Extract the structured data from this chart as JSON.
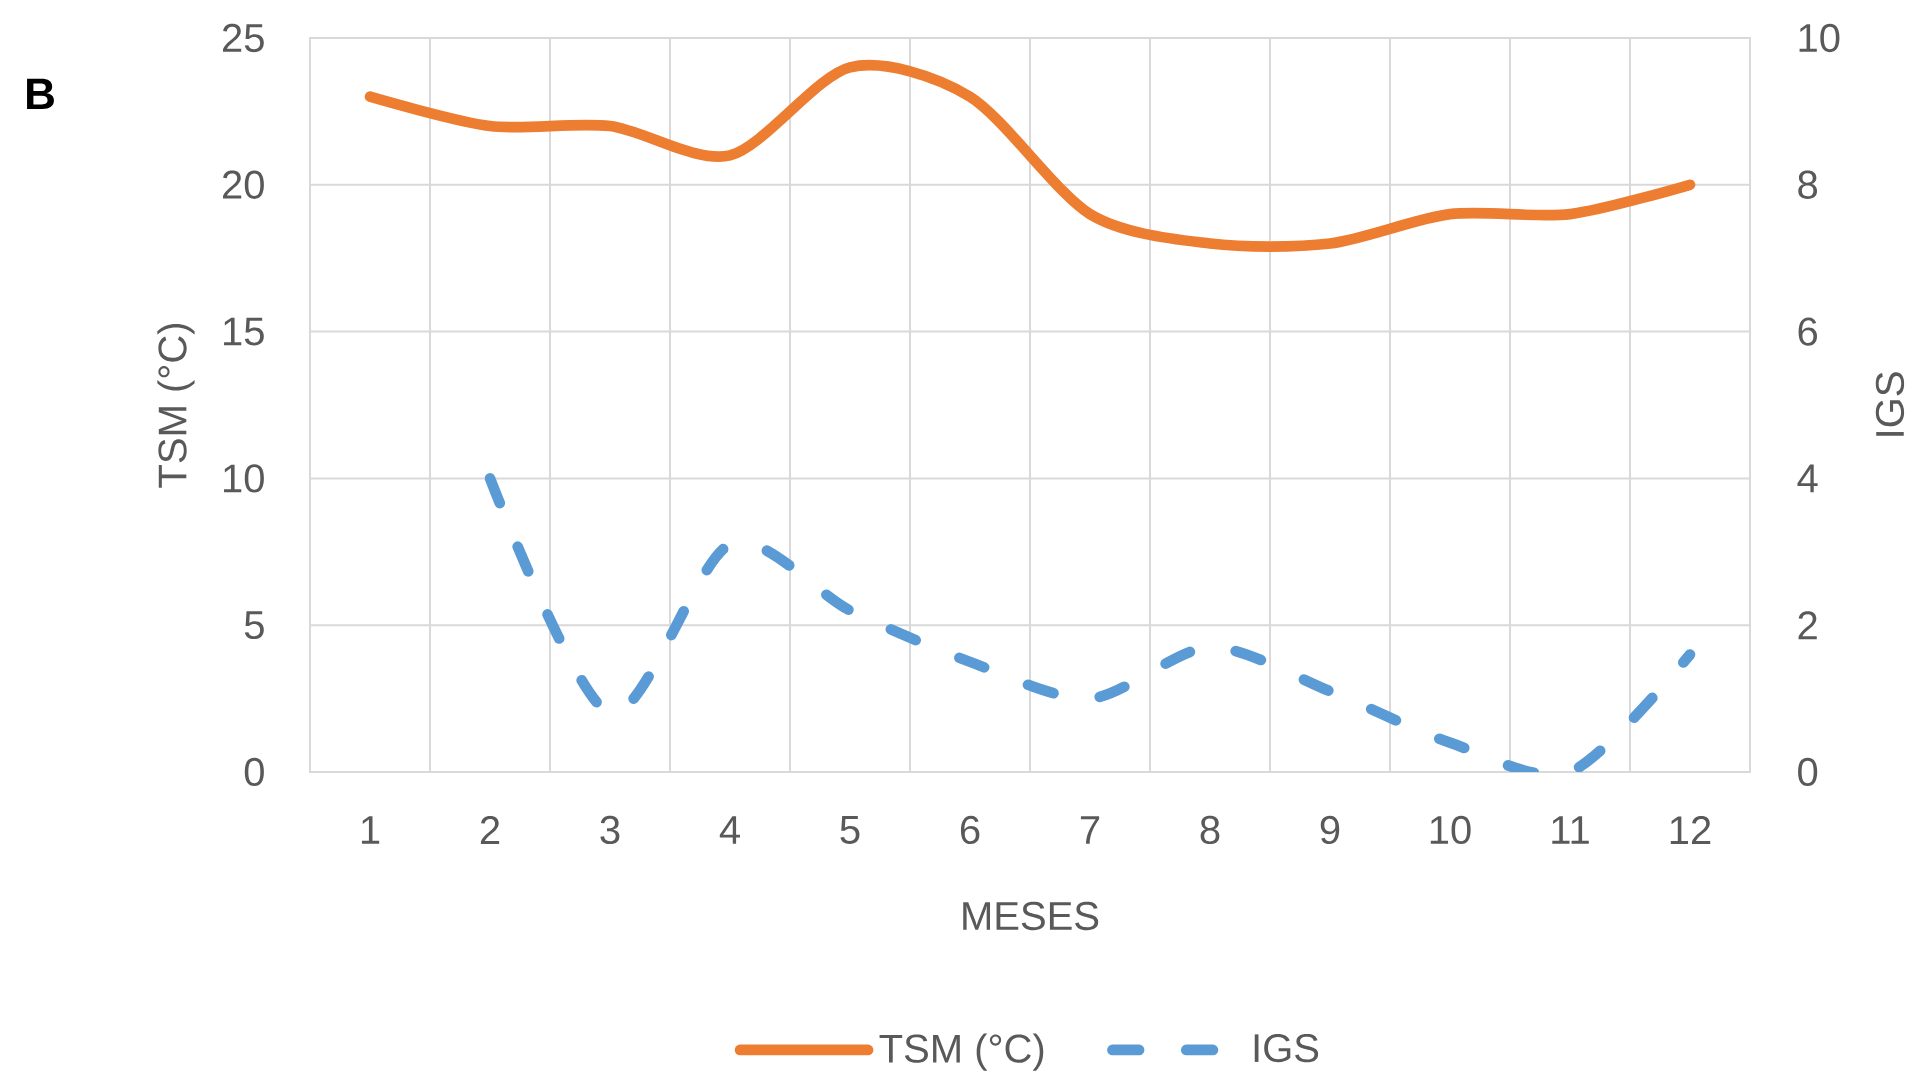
{
  "chart_data": {
    "type": "line",
    "categories": [
      "1",
      "2",
      "3",
      "4",
      "5",
      "6",
      "7",
      "8",
      "9",
      "10",
      "11",
      "12"
    ],
    "xlabel": "MESES",
    "ylabel": "TSM (°C)",
    "y2label": "IGS",
    "ylim": [
      0,
      25
    ],
    "yticks": [
      0,
      5,
      10,
      15,
      20,
      25
    ],
    "y2lim": [
      0,
      10
    ],
    "y2ticks": [
      0,
      2,
      4,
      6,
      8,
      10
    ],
    "series": [
      {
        "name": "TSM (°C)",
        "color": "#ed7d31",
        "line_style": "solid",
        "values": [
          23,
          22,
          22,
          21,
          24,
          23,
          19,
          18,
          18,
          19,
          19,
          20
        ]
      },
      {
        "name": "IGS",
        "color": "#5b9bd5",
        "axis": "y2",
        "line_style": "dashed",
        "values": [
          null,
          4,
          0.8,
          3.1,
          2.2,
          1.5,
          1.0,
          1.7,
          1.1,
          0.4,
          0,
          1.6
        ]
      }
    ],
    "grid": true,
    "legend": "bottom",
    "annotations": [
      "B"
    ]
  }
}
